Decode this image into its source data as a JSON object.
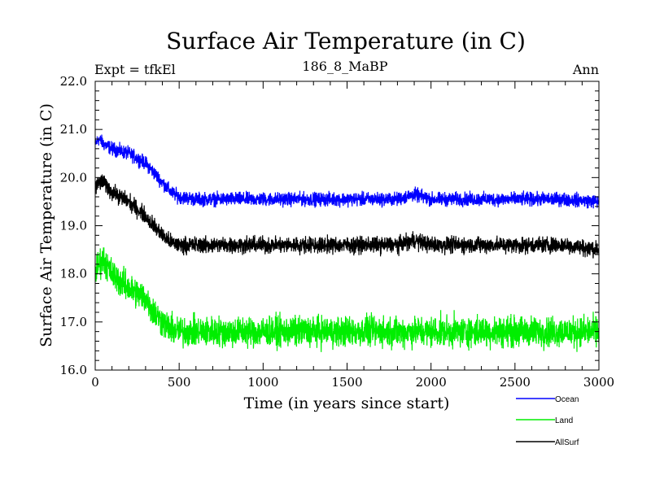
{
  "chart_data": {
    "type": "line",
    "title": "Surface Air Temperature (in C)",
    "experiment": "Expt = tfkEl",
    "subtitle": "186_8_MaBP",
    "season": "Ann",
    "xlabel": "Time (in years since start)",
    "ylabel": "Surface Air Temperature (in C)",
    "xlim": [
      0,
      3000
    ],
    "ylim": [
      16.0,
      22.0
    ],
    "x_ticks": [
      0,
      500,
      1000,
      1500,
      2000,
      2500,
      3000
    ],
    "x_tick_labels": [
      "0",
      "500",
      "1000",
      "1500",
      "2000",
      "2500",
      "3000"
    ],
    "y_ticks": [
      16.0,
      17.0,
      18.0,
      19.0,
      20.0,
      21.0,
      22.0
    ],
    "y_tick_labels": [
      "16.0",
      "17.0",
      "18.0",
      "19.0",
      "20.0",
      "21.0",
      "22.0"
    ],
    "grid": false,
    "legend_position": "bottom-right, below plot",
    "series": [
      {
        "name": "Ocean",
        "color": "#0000ff",
        "noise": 0.1,
        "x": [
          0,
          20,
          50,
          100,
          200,
          300,
          350,
          400,
          450,
          500,
          600,
          800,
          1000,
          1200,
          1500,
          1800,
          1900,
          2000,
          2200,
          2500,
          2800,
          3000
        ],
        "values": [
          20.7,
          20.8,
          20.7,
          20.6,
          20.5,
          20.3,
          20.1,
          19.9,
          19.7,
          19.6,
          19.55,
          19.55,
          19.55,
          19.55,
          19.55,
          19.55,
          19.65,
          19.55,
          19.55,
          19.55,
          19.55,
          19.5
        ]
      },
      {
        "name": "Land",
        "color": "#00ee00",
        "noise": 0.22,
        "x": [
          0,
          20,
          50,
          100,
          200,
          300,
          350,
          400,
          450,
          500,
          600,
          800,
          1000,
          1200,
          1500,
          1800,
          2000,
          2200,
          2500,
          2800,
          3000
        ],
        "values": [
          18.0,
          18.2,
          18.3,
          18.0,
          17.7,
          17.5,
          17.2,
          17.0,
          16.85,
          16.8,
          16.8,
          16.8,
          16.8,
          16.8,
          16.8,
          16.8,
          16.8,
          16.8,
          16.8,
          16.8,
          16.8
        ]
      },
      {
        "name": "AllSurf",
        "color": "#000000",
        "noise": 0.12,
        "x": [
          0,
          20,
          50,
          100,
          200,
          300,
          350,
          400,
          450,
          500,
          600,
          800,
          1000,
          1200,
          1500,
          1800,
          1900,
          2000,
          2200,
          2500,
          2800,
          3000
        ],
        "values": [
          19.8,
          19.9,
          19.9,
          19.7,
          19.5,
          19.2,
          19.0,
          18.8,
          18.65,
          18.6,
          18.6,
          18.6,
          18.6,
          18.6,
          18.6,
          18.6,
          18.7,
          18.6,
          18.6,
          18.6,
          18.6,
          18.5
        ]
      }
    ]
  }
}
